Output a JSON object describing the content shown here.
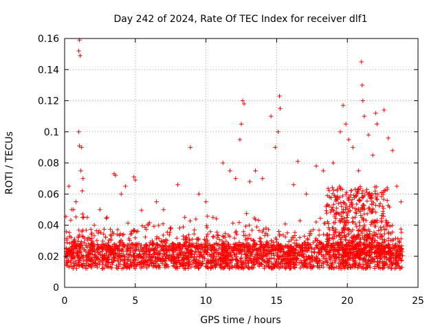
{
  "chart_data": {
    "type": "scatter",
    "title": "Day 242 of 2024, Rate Of TEC Index for receiver dlf1",
    "xlabel": "GPS time / hours",
    "ylabel": "ROTI / TECUs",
    "xlim": [
      0,
      25
    ],
    "ylim": [
      0,
      0.16
    ],
    "xticks": [
      0,
      5,
      10,
      15,
      20,
      25
    ],
    "xtick_labels": [
      "0",
      "5",
      "10",
      "15",
      "20",
      "25"
    ],
    "yticks": [
      0,
      0.02,
      0.04,
      0.06,
      0.08,
      0.1,
      0.12,
      0.14,
      0.16
    ],
    "ytick_labels": [
      "0",
      "0.02",
      "0.04",
      "0.06",
      "0.08",
      "0.1",
      "0.12",
      "0.14",
      "0.16"
    ],
    "grid": true,
    "marker": "plus",
    "color": "#ff0000",
    "series": [
      {
        "name": "ROTI",
        "description_points": "dense band 0.005-0.03 TECU across 0-24 h; notable outliers listed",
        "x": [
          1.05,
          1.0,
          1.1,
          1.0,
          1.05,
          1.2,
          1.15,
          1.3,
          1.25,
          0.3,
          0.5,
          0.8,
          1.6,
          2.1,
          2.5,
          3.0,
          3.5,
          3.6,
          4.0,
          4.3,
          4.9,
          5.0,
          5.9,
          6.5,
          7.0,
          8.0,
          8.5,
          8.9,
          9.5,
          10.0,
          10.5,
          11.2,
          11.7,
          12.1,
          12.6,
          12.7,
          12.5,
          12.4,
          13.1,
          13.5,
          14.0,
          14.6,
          14.9,
          15.2,
          15.25,
          15.1,
          16.2,
          16.5,
          17.1,
          17.8,
          18.3,
          19.0,
          19.5,
          19.7,
          19.9,
          20.1,
          20.4,
          20.8,
          21.0,
          21.05,
          21.1,
          21.2,
          21.5,
          21.8,
          22.0,
          22.1,
          22.6,
          22.9,
          23.2,
          23.5,
          23.8
        ],
        "y": [
          0.159,
          0.152,
          0.149,
          0.1,
          0.091,
          0.09,
          0.075,
          0.07,
          0.062,
          0.065,
          0.05,
          0.055,
          0.045,
          0.04,
          0.05,
          0.045,
          0.073,
          0.072,
          0.06,
          0.065,
          0.071,
          0.069,
          0.04,
          0.055,
          0.05,
          0.066,
          0.045,
          0.09,
          0.06,
          0.055,
          0.045,
          0.08,
          0.075,
          0.07,
          0.12,
          0.118,
          0.105,
          0.095,
          0.068,
          0.075,
          0.07,
          0.11,
          0.09,
          0.123,
          0.115,
          0.1,
          0.066,
          0.081,
          0.06,
          0.078,
          0.075,
          0.08,
          0.1,
          0.117,
          0.105,
          0.095,
          0.09,
          0.075,
          0.145,
          0.13,
          0.12,
          0.11,
          0.098,
          0.085,
          0.112,
          0.105,
          0.114,
          0.096,
          0.088,
          0.065,
          0.055
        ]
      }
    ]
  }
}
